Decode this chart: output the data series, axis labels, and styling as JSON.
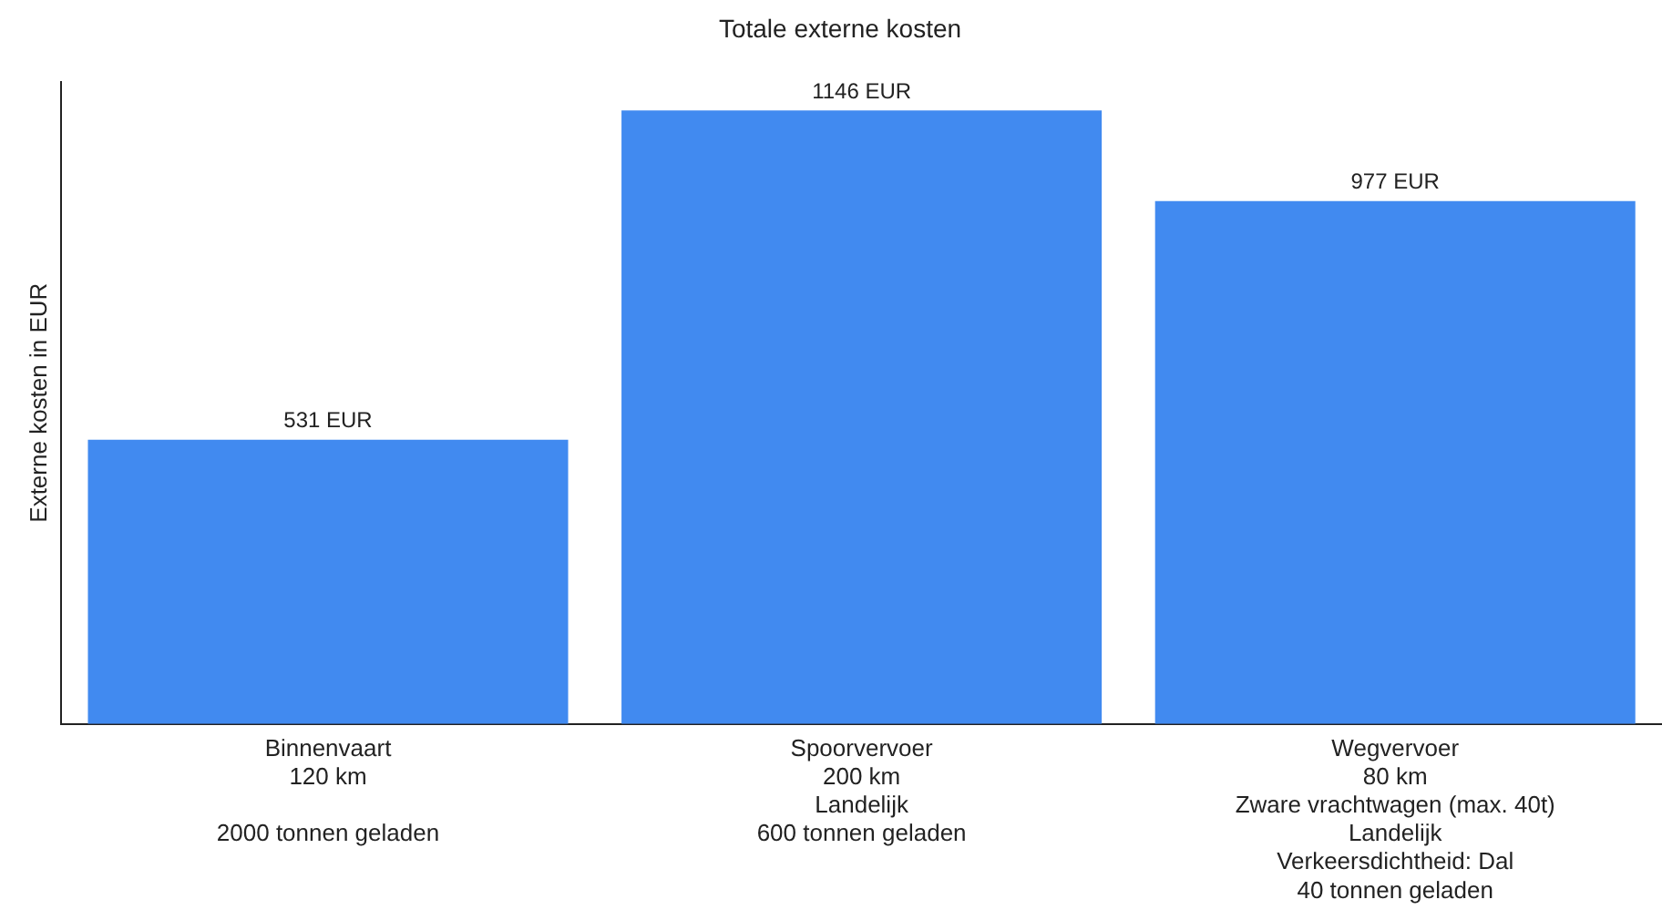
{
  "chart_data": {
    "type": "bar",
    "title": "Totale externe kosten",
    "ylabel": "Externe kosten in EUR",
    "categories": [
      "Binnenvaart\n120 km\n\n2000 tonnen geladen",
      "Spoorvervoer\n200 km\nLandelijk\n600 tonnen geladen",
      "Wegvervoer\n80 km\nZware vrachtwagen (max. 40t)\nLandelijk\nVerkeersdichtheid: Dal\n40 tonnen geladen"
    ],
    "values": [
      531,
      1146,
      977
    ],
    "value_labels": [
      "531 EUR",
      "1146 EUR",
      "977 EUR"
    ],
    "color": "#418af0",
    "ylim": [
      0,
      1200
    ],
    "tick_labels": "x",
    "grid": false,
    "legend": false
  }
}
